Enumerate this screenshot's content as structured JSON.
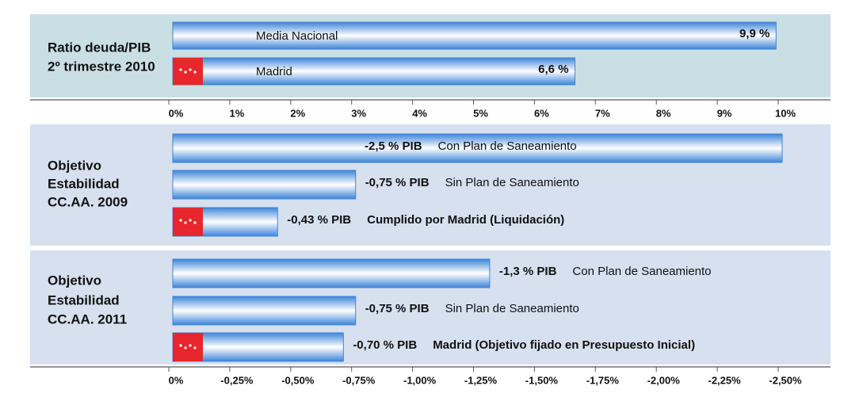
{
  "chart_data": [
    {
      "type": "bar",
      "orientation": "horizontal",
      "label_lines": [
        "Ratio deuda/PIB",
        "2º trimestre 2010"
      ],
      "categories": [
        "Media Nacional",
        "Madrid"
      ],
      "values": [
        9.9,
        6.6
      ],
      "value_labels": [
        "9,9 %",
        "6,6 %"
      ],
      "flag": [
        false,
        true
      ],
      "bold": [
        false,
        false
      ],
      "color": "#3d85d8",
      "background": "#c9dfe4",
      "xlim": [
        0,
        10
      ],
      "xticks": [
        {
          "value": 0,
          "label": "0%"
        },
        {
          "value": 1,
          "label": "1%"
        },
        {
          "value": 2,
          "label": "2%"
        },
        {
          "value": 3,
          "label": "3%"
        },
        {
          "value": 4,
          "label": "4%"
        },
        {
          "value": 5,
          "label": "5%"
        },
        {
          "value": 6,
          "label": "6%"
        },
        {
          "value": 7,
          "label": "7%"
        },
        {
          "value": 8,
          "label": "8%"
        },
        {
          "value": 9,
          "label": "9%"
        },
        {
          "value": 10,
          "label": "10%"
        }
      ]
    },
    {
      "type": "bar",
      "orientation": "horizontal",
      "label_lines": [
        "Objetivo",
        "Estabilidad",
        "CC.AA. 2009"
      ],
      "categories": [
        "Con Plan de Saneamiento",
        "Sin Plan de Saneamiento",
        "Cumplido por Madrid (Liquidación)"
      ],
      "values": [
        -2.5,
        -0.75,
        -0.43
      ],
      "value_labels": [
        "-2,5 % PIB",
        "-0,75 % PIB",
        "-0,43 % PIB"
      ],
      "flag": [
        false,
        false,
        true
      ],
      "bold": [
        false,
        false,
        true
      ],
      "color": "#3d85d8",
      "background": "#d6e0ef",
      "xlim": [
        0,
        -2.5
      ]
    },
    {
      "type": "bar",
      "orientation": "horizontal",
      "label_lines": [
        "Objetivo",
        "Estabilidad",
        "CC.AA. 2011"
      ],
      "categories": [
        "Con Plan de Saneamiento",
        "Sin Plan de Saneamiento",
        "Madrid (Objetivo fijado en Presupuesto Inicial)"
      ],
      "values": [
        -1.3,
        -0.75,
        -0.7
      ],
      "value_labels": [
        "-1,3 % PIB",
        "-0,75 % PIB",
        "-0,70 % PIB"
      ],
      "flag": [
        false,
        false,
        true
      ],
      "bold": [
        false,
        false,
        true
      ],
      "color": "#3d85d8",
      "background": "#d6e0ef",
      "xlim": [
        0,
        -2.5
      ],
      "xticks": [
        {
          "value": 0,
          "label": "0%"
        },
        {
          "value": -0.25,
          "label": "-0,25%"
        },
        {
          "value": -0.5,
          "label": "-0,50%"
        },
        {
          "value": -0.75,
          "label": "-0,75%"
        },
        {
          "value": -1,
          "label": "-1,00%"
        },
        {
          "value": -1.25,
          "label": "-1,25%"
        },
        {
          "value": -1.5,
          "label": "-1,50%"
        },
        {
          "value": -1.75,
          "label": "-1,75%"
        },
        {
          "value": -2,
          "label": "-2,00%"
        },
        {
          "value": -2.25,
          "label": "-2,25%"
        },
        {
          "value": -2.5,
          "label": "-2,50%"
        }
      ]
    }
  ]
}
